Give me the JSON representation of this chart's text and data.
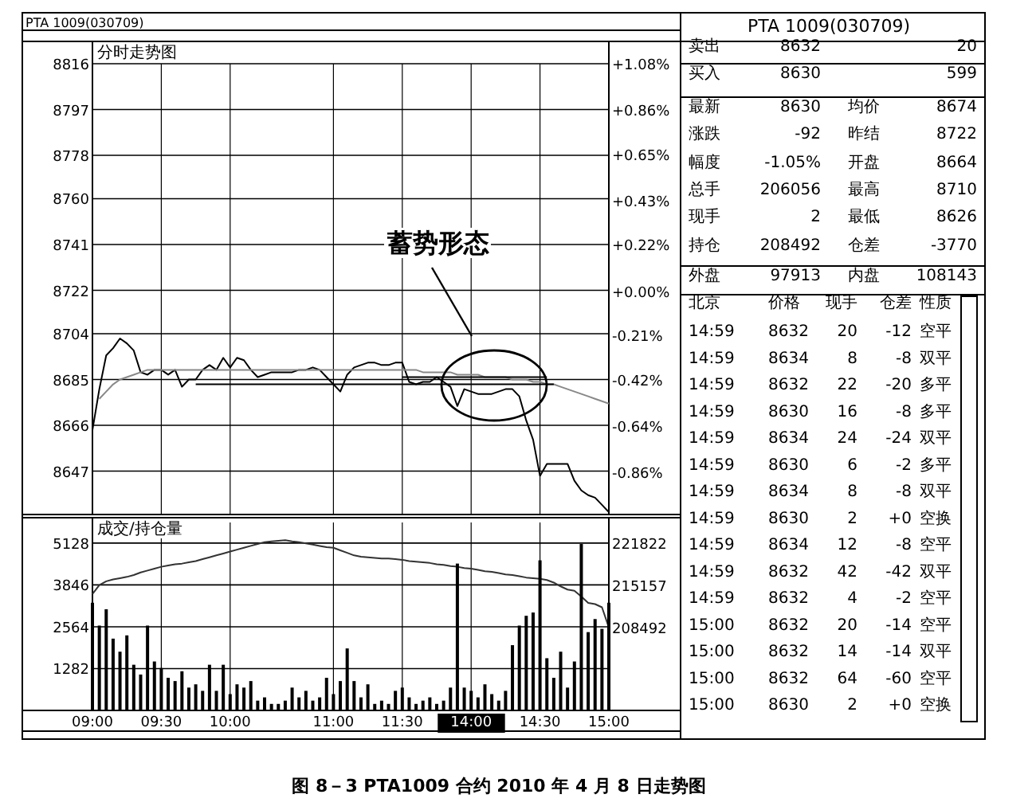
{
  "chart_data": [
    {
      "type": "line",
      "title": "PTA 1009(030709)",
      "subtitle": "分时走势图",
      "categories": [
        null,
        null,
        null,
        null,
        null,
        null,
        null,
        null,
        null,
        null,
        null,
        null,
        null,
        null,
        null,
        null,
        null,
        null,
        null,
        null,
        null,
        null,
        null,
        null,
        null,
        null,
        null,
        null,
        null,
        null,
        null,
        null,
        null,
        null,
        null,
        null,
        null,
        null,
        null,
        null,
        null,
        null,
        null,
        null,
        null,
        null,
        null,
        null,
        null,
        null,
        null,
        null,
        null,
        null,
        null,
        null,
        null,
        null,
        null,
        null,
        null,
        null,
        null,
        null,
        null,
        null,
        null,
        null,
        null,
        null,
        null,
        null,
        null,
        null,
        null,
        null
      ],
      "ylim": [
        8629,
        8816
      ],
      "yticks": [
        8647,
        8666,
        8685,
        8704,
        8722,
        8741,
        8760,
        8778,
        8797,
        8816
      ],
      "y2lim": [
        -1.06,
        1.08
      ],
      "y2ticks": [
        {
          "value": -0.86,
          "label": "-0.86%"
        },
        {
          "value": -0.64,
          "label": "-0.64%"
        },
        {
          "value": -0.42,
          "label": "-0.42%"
        },
        {
          "value": -0.21,
          "label": "-0.21%"
        },
        {
          "value": 0,
          "label": "+0.00%"
        },
        {
          "value": 0.22,
          "label": "+0.22%"
        },
        {
          "value": 0.43,
          "label": "+0.43%"
        },
        {
          "value": 0.65,
          "label": "+0.65%"
        },
        {
          "value": 0.86,
          "label": "+0.86%"
        },
        {
          "value": 1.08,
          "label": "+1.08%"
        }
      ],
      "grid": true,
      "tick_labels": "y",
      "series": [
        {
          "color": "#000000",
          "values": [
            8664,
            8681,
            8695,
            8698,
            8702,
            8700,
            8697,
            8688,
            8687,
            8689,
            8689,
            8687,
            8689,
            8682,
            8685,
            8685,
            8689,
            8691,
            8689,
            8694,
            8690,
            8694,
            8693,
            8689,
            8686,
            8687,
            8688,
            8688,
            8688,
            8688,
            8689,
            8689,
            8690,
            8689,
            8686,
            8683,
            8680,
            8687,
            8690,
            8691,
            8692,
            8692,
            8691,
            8691,
            8692,
            8692,
            8684,
            8683,
            8684,
            8684,
            8686,
            8684,
            8682,
            8674,
            8681,
            8680,
            8679,
            8679,
            8679,
            8680,
            8681,
            8681,
            8678,
            8668,
            8660,
            8645,
            8650,
            8650,
            8650,
            8650,
            8643,
            8639,
            8637,
            8636,
            8633,
            8630
          ]
        },
        {
          "color": "#888888",
          "values": [
            null,
            8677,
            8680,
            8683,
            8685,
            8686,
            8687,
            8688,
            8689,
            8689,
            8689,
            8689,
            8689,
            8689,
            8689,
            8689,
            8689,
            8689,
            8689,
            8689,
            8689,
            8689,
            8689,
            8689,
            8689,
            8689,
            8689,
            8689,
            8689,
            8689,
            8689,
            8689,
            8689,
            8689,
            8689,
            8689,
            8689,
            8689,
            8689,
            8689,
            8689,
            8689,
            8689,
            8689,
            8689,
            8689,
            8689,
            8689,
            8688,
            8688,
            8688,
            8688,
            8688,
            8687,
            8687,
            8687,
            8687,
            8686,
            8686,
            8686,
            8686,
            8685,
            8685,
            8685,
            8684,
            8684,
            8683,
            8683,
            8682,
            8681,
            8680,
            8679,
            8678,
            8677,
            8676,
            8675
          ]
        },
        {
          "color": "#000000",
          "values": [
            null,
            null,
            null,
            null,
            null,
            null,
            null,
            null,
            null,
            null,
            null,
            null,
            null,
            null,
            null,
            8683,
            8683,
            8683,
            8683,
            8683,
            8683,
            8683,
            8683,
            8683,
            8683,
            8683,
            8683,
            8683,
            8683,
            8683,
            8683,
            8683,
            8683,
            8683,
            8683,
            8683,
            8683,
            8683,
            8683,
            8683,
            8683,
            8683,
            8683,
            8683,
            8683,
            8683,
            8683,
            8683,
            8683,
            8683,
            8683,
            8683,
            8683,
            8683,
            8683,
            8683,
            8683,
            8683,
            8683,
            8683,
            8683,
            8683,
            8683,
            8683,
            8683,
            8683,
            8683,
            8683,
            null,
            null,
            null,
            null,
            null,
            null,
            null,
            null
          ]
        },
        {
          "color": "#000000",
          "values": [
            null,
            null,
            null,
            null,
            null,
            null,
            null,
            null,
            null,
            null,
            null,
            null,
            null,
            null,
            null,
            null,
            null,
            null,
            null,
            null,
            null,
            null,
            null,
            null,
            null,
            null,
            null,
            null,
            null,
            null,
            null,
            null,
            null,
            null,
            null,
            null,
            null,
            null,
            null,
            null,
            null,
            null,
            null,
            null,
            null,
            8686,
            8686,
            8686,
            8686,
            8686,
            8686,
            8686,
            8686,
            8686,
            8686,
            8686,
            8686,
            8686,
            8686,
            8686,
            8686,
            8686,
            8686,
            8686,
            8686,
            8686,
            8686,
            null,
            null,
            null,
            null,
            null,
            null,
            null,
            null,
            null
          ]
        }
      ],
      "annotations": [
        "蓄势形态"
      ]
    },
    {
      "type": "bar",
      "subtitle": "成交/持仓量",
      "categories": [
        "09:00",
        null,
        null,
        null,
        null,
        null,
        null,
        null,
        null,
        null,
        "09:30",
        null,
        null,
        null,
        null,
        null,
        null,
        null,
        null,
        null,
        "10:00",
        null,
        null,
        null,
        null,
        null,
        null,
        null,
        null,
        null,
        null,
        null,
        null,
        null,
        null,
        "11:00",
        null,
        null,
        null,
        null,
        null,
        null,
        null,
        null,
        null,
        "11:30",
        null,
        null,
        null,
        null,
        null,
        null,
        null,
        null,
        null,
        "14:00",
        null,
        null,
        null,
        null,
        null,
        null,
        null,
        null,
        null,
        "14:30",
        null,
        null,
        null,
        null,
        null,
        null,
        null,
        null,
        null,
        "15:00"
      ],
      "ylim": [
        0,
        5760
      ],
      "yticks": [
        1282,
        2564,
        3846,
        5128
      ],
      "y2lim": [
        195400,
        225100
      ],
      "y2ticks": [
        208492,
        215157,
        221822
      ],
      "grid": true,
      "series": [
        {
          "color": "#000000",
          "values": [
            3300,
            2600,
            3100,
            2200,
            1800,
            2300,
            1400,
            1100,
            2600,
            1500,
            1300,
            1000,
            900,
            1200,
            700,
            800,
            600,
            1400,
            600,
            1400,
            500,
            800,
            700,
            900,
            300,
            400,
            200,
            200,
            300,
            700,
            400,
            600,
            300,
            400,
            1000,
            500,
            900,
            1900,
            900,
            400,
            800,
            200,
            300,
            200,
            600,
            700,
            400,
            200,
            300,
            400,
            200,
            300,
            700,
            4500,
            700,
            600,
            400,
            800,
            500,
            300,
            600,
            2000,
            2600,
            2900,
            3000,
            4600,
            1600,
            1000,
            1800,
            700,
            1500,
            5100,
            2400,
            2800,
            2500,
            3300
          ]
        },
        {
          "type": "line",
          "axis": "y2",
          "color": "#333333",
          "values": [
            213800,
            215200,
            215800,
            216100,
            216300,
            216500,
            216800,
            217200,
            217500,
            217800,
            218100,
            218300,
            218500,
            218600,
            218800,
            219000,
            219300,
            219600,
            219900,
            220200,
            220500,
            220800,
            221100,
            221400,
            221700,
            222000,
            222100,
            222200,
            222300,
            222100,
            222000,
            221800,
            221600,
            221400,
            221200,
            221100,
            220700,
            220300,
            219900,
            219700,
            219600,
            219500,
            219400,
            219400,
            219300,
            219200,
            219000,
            218900,
            218800,
            218700,
            218500,
            218400,
            218200,
            218100,
            217900,
            217800,
            217600,
            217400,
            217300,
            217100,
            216900,
            216800,
            216600,
            216400,
            216300,
            216200,
            216000,
            215600,
            215000,
            214500,
            214300,
            213400,
            212400,
            212200,
            211700,
            208500
          ]
        }
      ],
      "annotations": [
        "图 8－3 PTA1009 合约 2010 年 4 月 8 日走势图"
      ]
    },
    {
      "type": "other",
      "title": "PTA 1009(030709)",
      "annotations": [
        "卖出",
        "8632",
        "20",
        "买入",
        "8630",
        "599",
        "最新",
        "8630",
        "均价",
        "8674",
        "涨跌",
        "-92",
        "昨结",
        "8722",
        "幅度",
        "-1.05%",
        "开盘",
        "8664",
        "总手",
        "206056",
        "最高",
        "8710",
        "现手",
        "2",
        "最低",
        "8626",
        "持仓",
        "208492",
        "仓差",
        "-3770",
        "外盘",
        "97913",
        "内盘",
        "108143",
        "北京",
        "价格",
        "现手",
        "仓差",
        "性质",
        "14:59",
        "8632",
        "20",
        "-12",
        "空平",
        "14:59",
        "8634",
        "8",
        "-8",
        "双平",
        "14:59",
        "8632",
        "22",
        "-20",
        "多平",
        "14:59",
        "8630",
        "16",
        "-8",
        "多平",
        "14:59",
        "8634",
        "24",
        "-24",
        "双平",
        "14:59",
        "8630",
        "6",
        "-2",
        "多平",
        "14:59",
        "8634",
        "8",
        "-8",
        "双平",
        "14:59",
        "8630",
        "2",
        "+0",
        "空换",
        "14:59",
        "8634",
        "12",
        "-8",
        "空平",
        "14:59",
        "8632",
        "42",
        "-42",
        "双平",
        "14:59",
        "8632",
        "4",
        "-2",
        "空平",
        "15:00",
        "8632",
        "20",
        "-14",
        "空平",
        "15:00",
        "8632",
        "14",
        "-14",
        "双平",
        "15:00",
        "8632",
        "64",
        "-60",
        "空平",
        "15:00",
        "8630",
        "2",
        "+0",
        "空换"
      ]
    }
  ]
}
